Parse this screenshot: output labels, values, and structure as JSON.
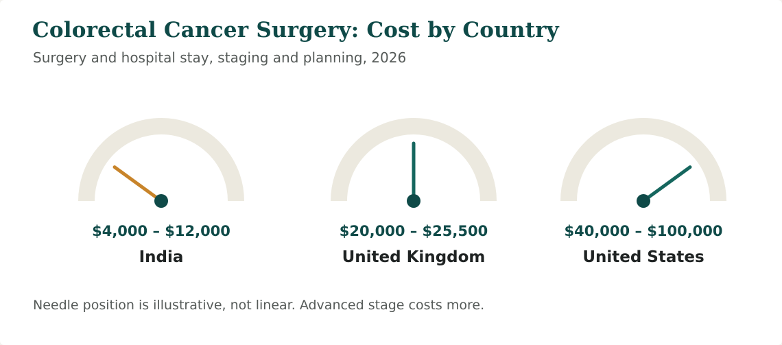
{
  "title": "Colorectal Cancer Surgery: Cost by Country",
  "subtitle": "Surgery and hospital stay, staging and planning, 2026",
  "footnote": "Needle position is illustrative, not linear. Advanced stage costs more.",
  "colors": {
    "title": "#0f4a48",
    "track": "#ece9df",
    "needle_low": "#c8842a",
    "needle_mid": "#15665e",
    "hub": "#0f4a48",
    "range_text": "#0f4a48",
    "label_text": "#1f2323"
  },
  "chart_data": {
    "type": "gauge",
    "title": "Colorectal Cancer Surgery: Cost by Country",
    "subtitle": "Surgery and hospital stay, staging and planning, 2026",
    "note": "Needle position is illustrative, not linear. Advanced stage costs more.",
    "gauges": [
      {
        "country": "India",
        "range_label": "$4,000 – $12,000",
        "low": 4000,
        "high": 12000,
        "needle_fraction": 0.2,
        "needle_color": "#c8842a"
      },
      {
        "country": "United Kingdom",
        "range_label": "$20,000 – $25,500",
        "low": 20000,
        "high": 25500,
        "needle_fraction": 0.5,
        "needle_color": "#15665e"
      },
      {
        "country": "United States",
        "range_label": "$40,000 – $100,000",
        "low": 40000,
        "high": 100000,
        "needle_fraction": 0.8,
        "needle_color": "#15665e"
      }
    ]
  }
}
